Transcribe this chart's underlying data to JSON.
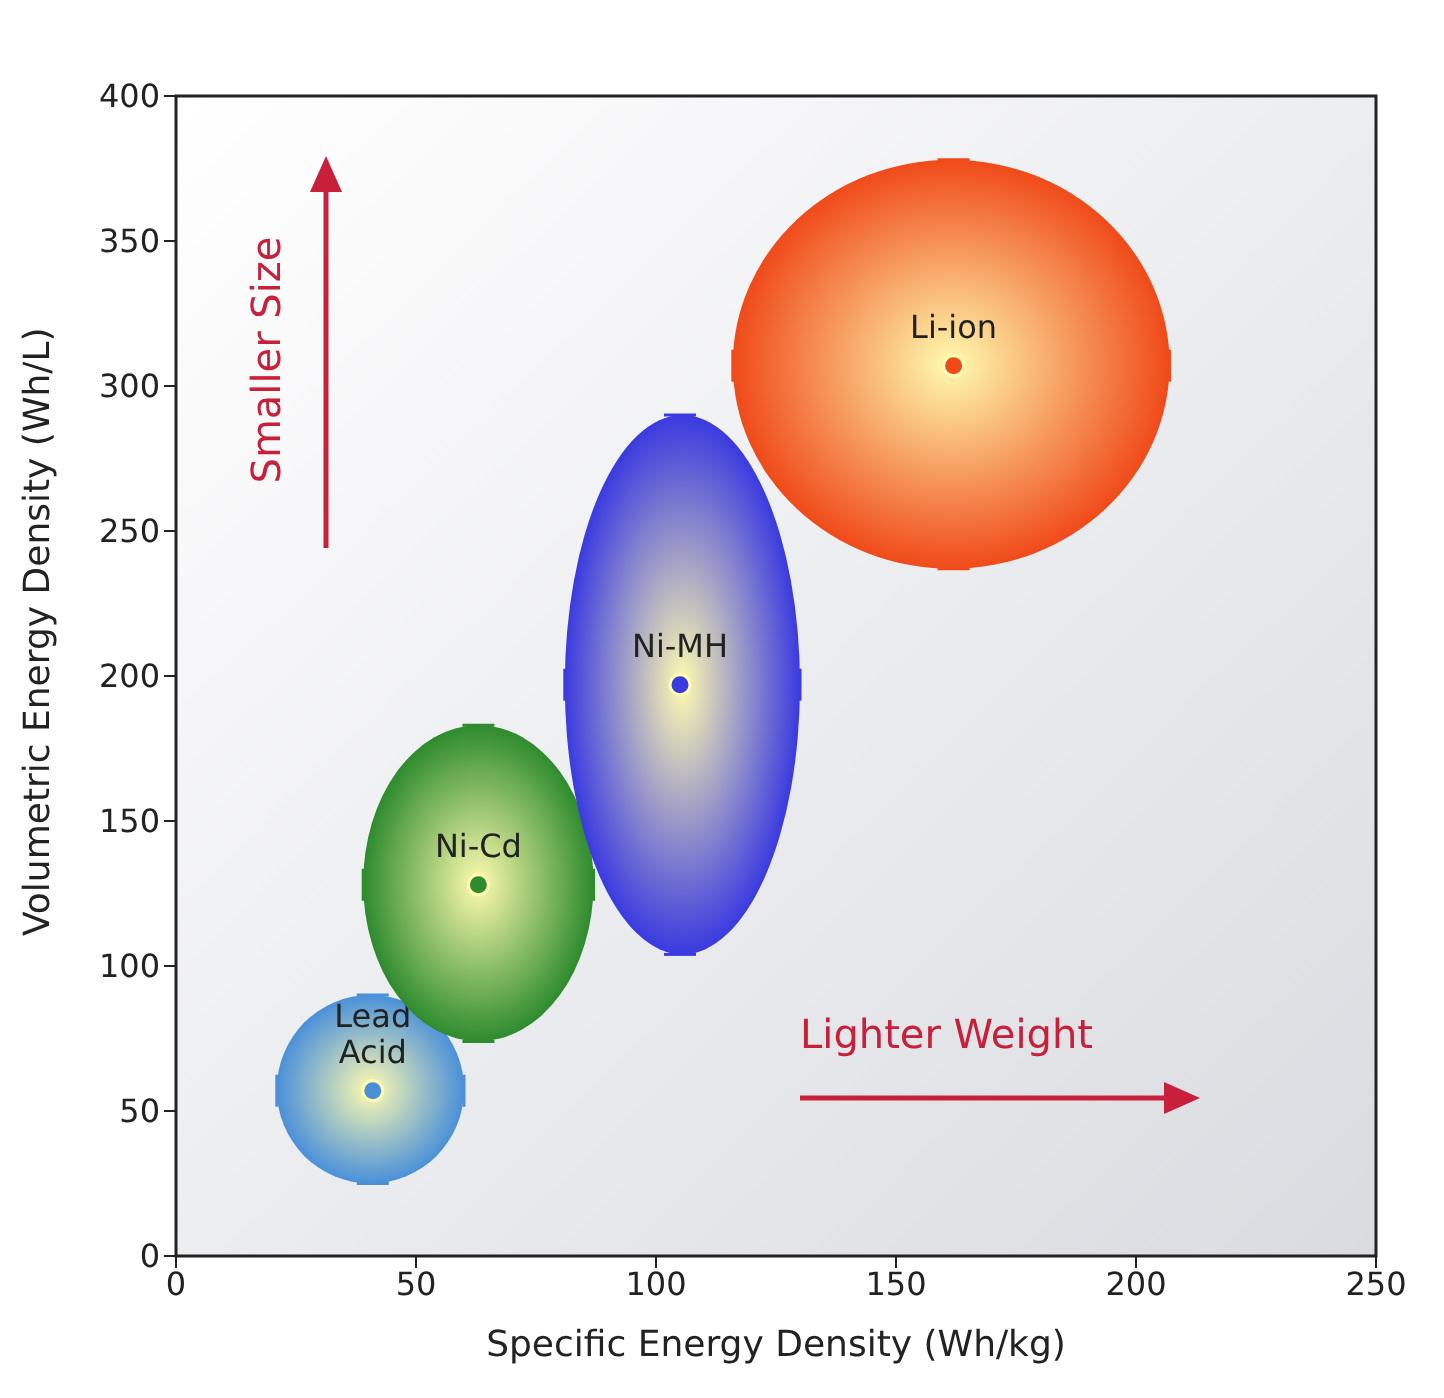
{
  "chart_data": {
    "type": "scatter",
    "xlabel": "Specific Energy Density (Wh/kg)",
    "ylabel": "Volumetric Energy Density (Wh/L)",
    "xlim": [
      0,
      250
    ],
    "ylim": [
      0,
      400
    ],
    "xticks": [
      0,
      50,
      100,
      150,
      200,
      250
    ],
    "yticks": [
      0,
      50,
      100,
      150,
      200,
      250,
      300,
      350,
      400
    ],
    "legend": false,
    "marker": "circle",
    "annotations": [
      "Smaller Size",
      "Lighter Weight"
    ],
    "series": [
      {
        "name": "Lead Acid",
        "color": "#4a90d9",
        "x": [
          41
        ],
        "values": [
          57
        ],
        "xerrors": [
          [
            21,
            60
          ]
        ],
        "errors": [
          [
            25,
            90
          ]
        ]
      },
      {
        "name": "Ni-Cd",
        "color": "#2e8b2e",
        "x": [
          63
        ],
        "values": [
          128
        ],
        "xerrors": [
          [
            39,
            87
          ]
        ],
        "errors": [
          [
            74,
            183
          ]
        ]
      },
      {
        "name": "Ni-MH",
        "color": "#3a3ae0",
        "x": [
          105
        ],
        "values": [
          197
        ],
        "xerrors": [
          [
            81,
            130
          ]
        ],
        "errors": [
          [
            104,
            290
          ]
        ]
      },
      {
        "name": "Li-ion",
        "color": "#f04a1a",
        "x": [
          162
        ],
        "values": [
          307
        ],
        "xerrors": [
          [
            116,
            207
          ]
        ],
        "errors": [
          [
            237,
            378
          ]
        ]
      }
    ]
  }
}
